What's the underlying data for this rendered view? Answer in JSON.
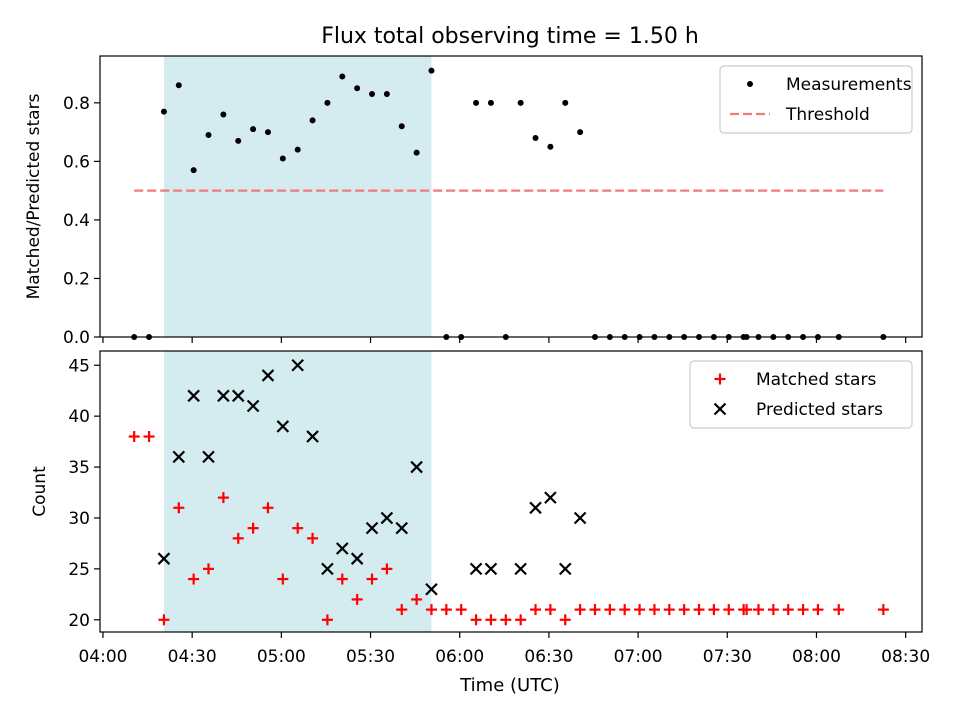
{
  "chart_data": {
    "type": "scatter",
    "title": "Flux total observing time = 1.50 h",
    "xlabel": "Time (UTC)",
    "x_unit": "minutes since 04:00",
    "x_ticks": [
      {
        "label": "04:00",
        "value": 0
      },
      {
        "label": "04:30",
        "value": 30
      },
      {
        "label": "05:00",
        "value": 60
      },
      {
        "label": "05:30",
        "value": 90
      },
      {
        "label": "06:00",
        "value": 120
      },
      {
        "label": "06:30",
        "value": 150
      },
      {
        "label": "07:00",
        "value": 180
      },
      {
        "label": "07:30",
        "value": 210
      },
      {
        "label": "08:00",
        "value": 240
      },
      {
        "label": "08:30",
        "value": 270
      }
    ],
    "xlim": [
      -1,
      275.5
    ],
    "highlight_span": [
      20.5,
      110.5
    ],
    "highlight_color": "#d4ebf0",
    "panels": [
      {
        "id": "ratio",
        "ylabel": "Matched/Predicted stars",
        "ylim": [
          0,
          0.96
        ],
        "yticks": [
          {
            "label": "0.0",
            "value": 0
          },
          {
            "label": "0.2",
            "value": 0.2
          },
          {
            "label": "0.4",
            "value": 0.4
          },
          {
            "label": "0.6",
            "value": 0.6
          },
          {
            "label": "0.8",
            "value": 0.8
          }
        ],
        "series": [
          {
            "name": "Measurements",
            "kind": "dots",
            "color": "#000000",
            "x": [
              10.5,
              15.5,
              20.5,
              25.5,
              30.5,
              35.5,
              40.5,
              45.5,
              50.5,
              55.5,
              60.5,
              65.5,
              70.5,
              75.5,
              80.5,
              85.5,
              90.5,
              95.5,
              100.5,
              105.5,
              110.5,
              115.5,
              120.5,
              125.5,
              130.5,
              135.5,
              140.5,
              145.5,
              150.5,
              155.5,
              160.5,
              165.5,
              170.5,
              175.5,
              180.5,
              185.5,
              190.5,
              195.5,
              200.5,
              205.5,
              210.5,
              215.5,
              216.5,
              220.5,
              225.5,
              230.5,
              235.5,
              240.5,
              247.5,
              262.5
            ],
            "y": [
              0,
              0,
              0.77,
              0.86,
              0.57,
              0.69,
              0.76,
              0.67,
              0.71,
              0.7,
              0.61,
              0.64,
              0.74,
              0.8,
              0.89,
              0.85,
              0.83,
              0.83,
              0.72,
              0.63,
              0.91,
              0,
              0,
              0.8,
              0.8,
              0,
              0.8,
              0.68,
              0.65,
              0.8,
              0.7,
              0,
              0,
              0,
              0,
              0,
              0,
              0,
              0,
              0,
              0,
              0,
              0,
              0,
              0,
              0,
              0,
              0,
              0,
              0
            ]
          },
          {
            "name": "Threshold",
            "kind": "dashed-line",
            "color": "#f07b7b",
            "x": [
              10.5,
              262.5
            ],
            "y": [
              0.5,
              0.5
            ]
          }
        ],
        "legend": "upper right"
      },
      {
        "id": "counts",
        "ylabel": "Count",
        "ylim": [
          18.8,
          46.4
        ],
        "yticks": [
          {
            "label": "20",
            "value": 20
          },
          {
            "label": "25",
            "value": 25
          },
          {
            "label": "30",
            "value": 30
          },
          {
            "label": "35",
            "value": 35
          },
          {
            "label": "40",
            "value": 40
          },
          {
            "label": "45",
            "value": 45
          }
        ],
        "series": [
          {
            "name": "Matched stars",
            "kind": "plus",
            "color": "#ff0000",
            "x": [
              10.5,
              15.5,
              20.5,
              25.5,
              30.5,
              35.5,
              40.5,
              45.5,
              50.5,
              55.5,
              60.5,
              65.5,
              70.5,
              75.5,
              80.5,
              85.5,
              90.5,
              95.5,
              100.5,
              105.5,
              110.5,
              115.5,
              120.5,
              125.5,
              130.5,
              135.5,
              140.5,
              145.5,
              150.5,
              155.5,
              160.5,
              165.5,
              170.5,
              175.5,
              180.5,
              185.5,
              190.5,
              195.5,
              200.5,
              205.5,
              210.5,
              215.5,
              216.5,
              220.5,
              225.5,
              230.5,
              235.5,
              240.5,
              247.5,
              262.5
            ],
            "y": [
              38,
              38,
              20,
              31,
              24,
              25,
              32,
              28,
              29,
              31,
              24,
              29,
              28,
              20,
              24,
              22,
              24,
              25,
              21,
              22,
              21,
              21,
              21,
              20,
              20,
              20,
              20,
              21,
              21,
              20,
              21,
              21,
              21,
              21,
              21,
              21,
              21,
              21,
              21,
              21,
              21,
              21,
              21,
              21,
              21,
              21,
              21,
              21,
              21,
              21
            ]
          },
          {
            "name": "Predicted stars",
            "kind": "cross",
            "color": "#000000",
            "x": [
              20.5,
              25.5,
              30.5,
              35.5,
              40.5,
              45.5,
              50.5,
              55.5,
              60.5,
              65.5,
              70.5,
              75.5,
              80.5,
              85.5,
              90.5,
              95.5,
              100.5,
              105.5,
              110.5,
              125.5,
              130.5,
              140.5,
              145.5,
              150.5,
              155.5,
              160.5
            ],
            "y": [
              26,
              36,
              42,
              36,
              42,
              42,
              41,
              44,
              39,
              45,
              38,
              25,
              27,
              26,
              29,
              30,
              29,
              35,
              23,
              25,
              25,
              25,
              31,
              32,
              25,
              30
            ]
          }
        ],
        "legend": "upper right"
      }
    ]
  }
}
